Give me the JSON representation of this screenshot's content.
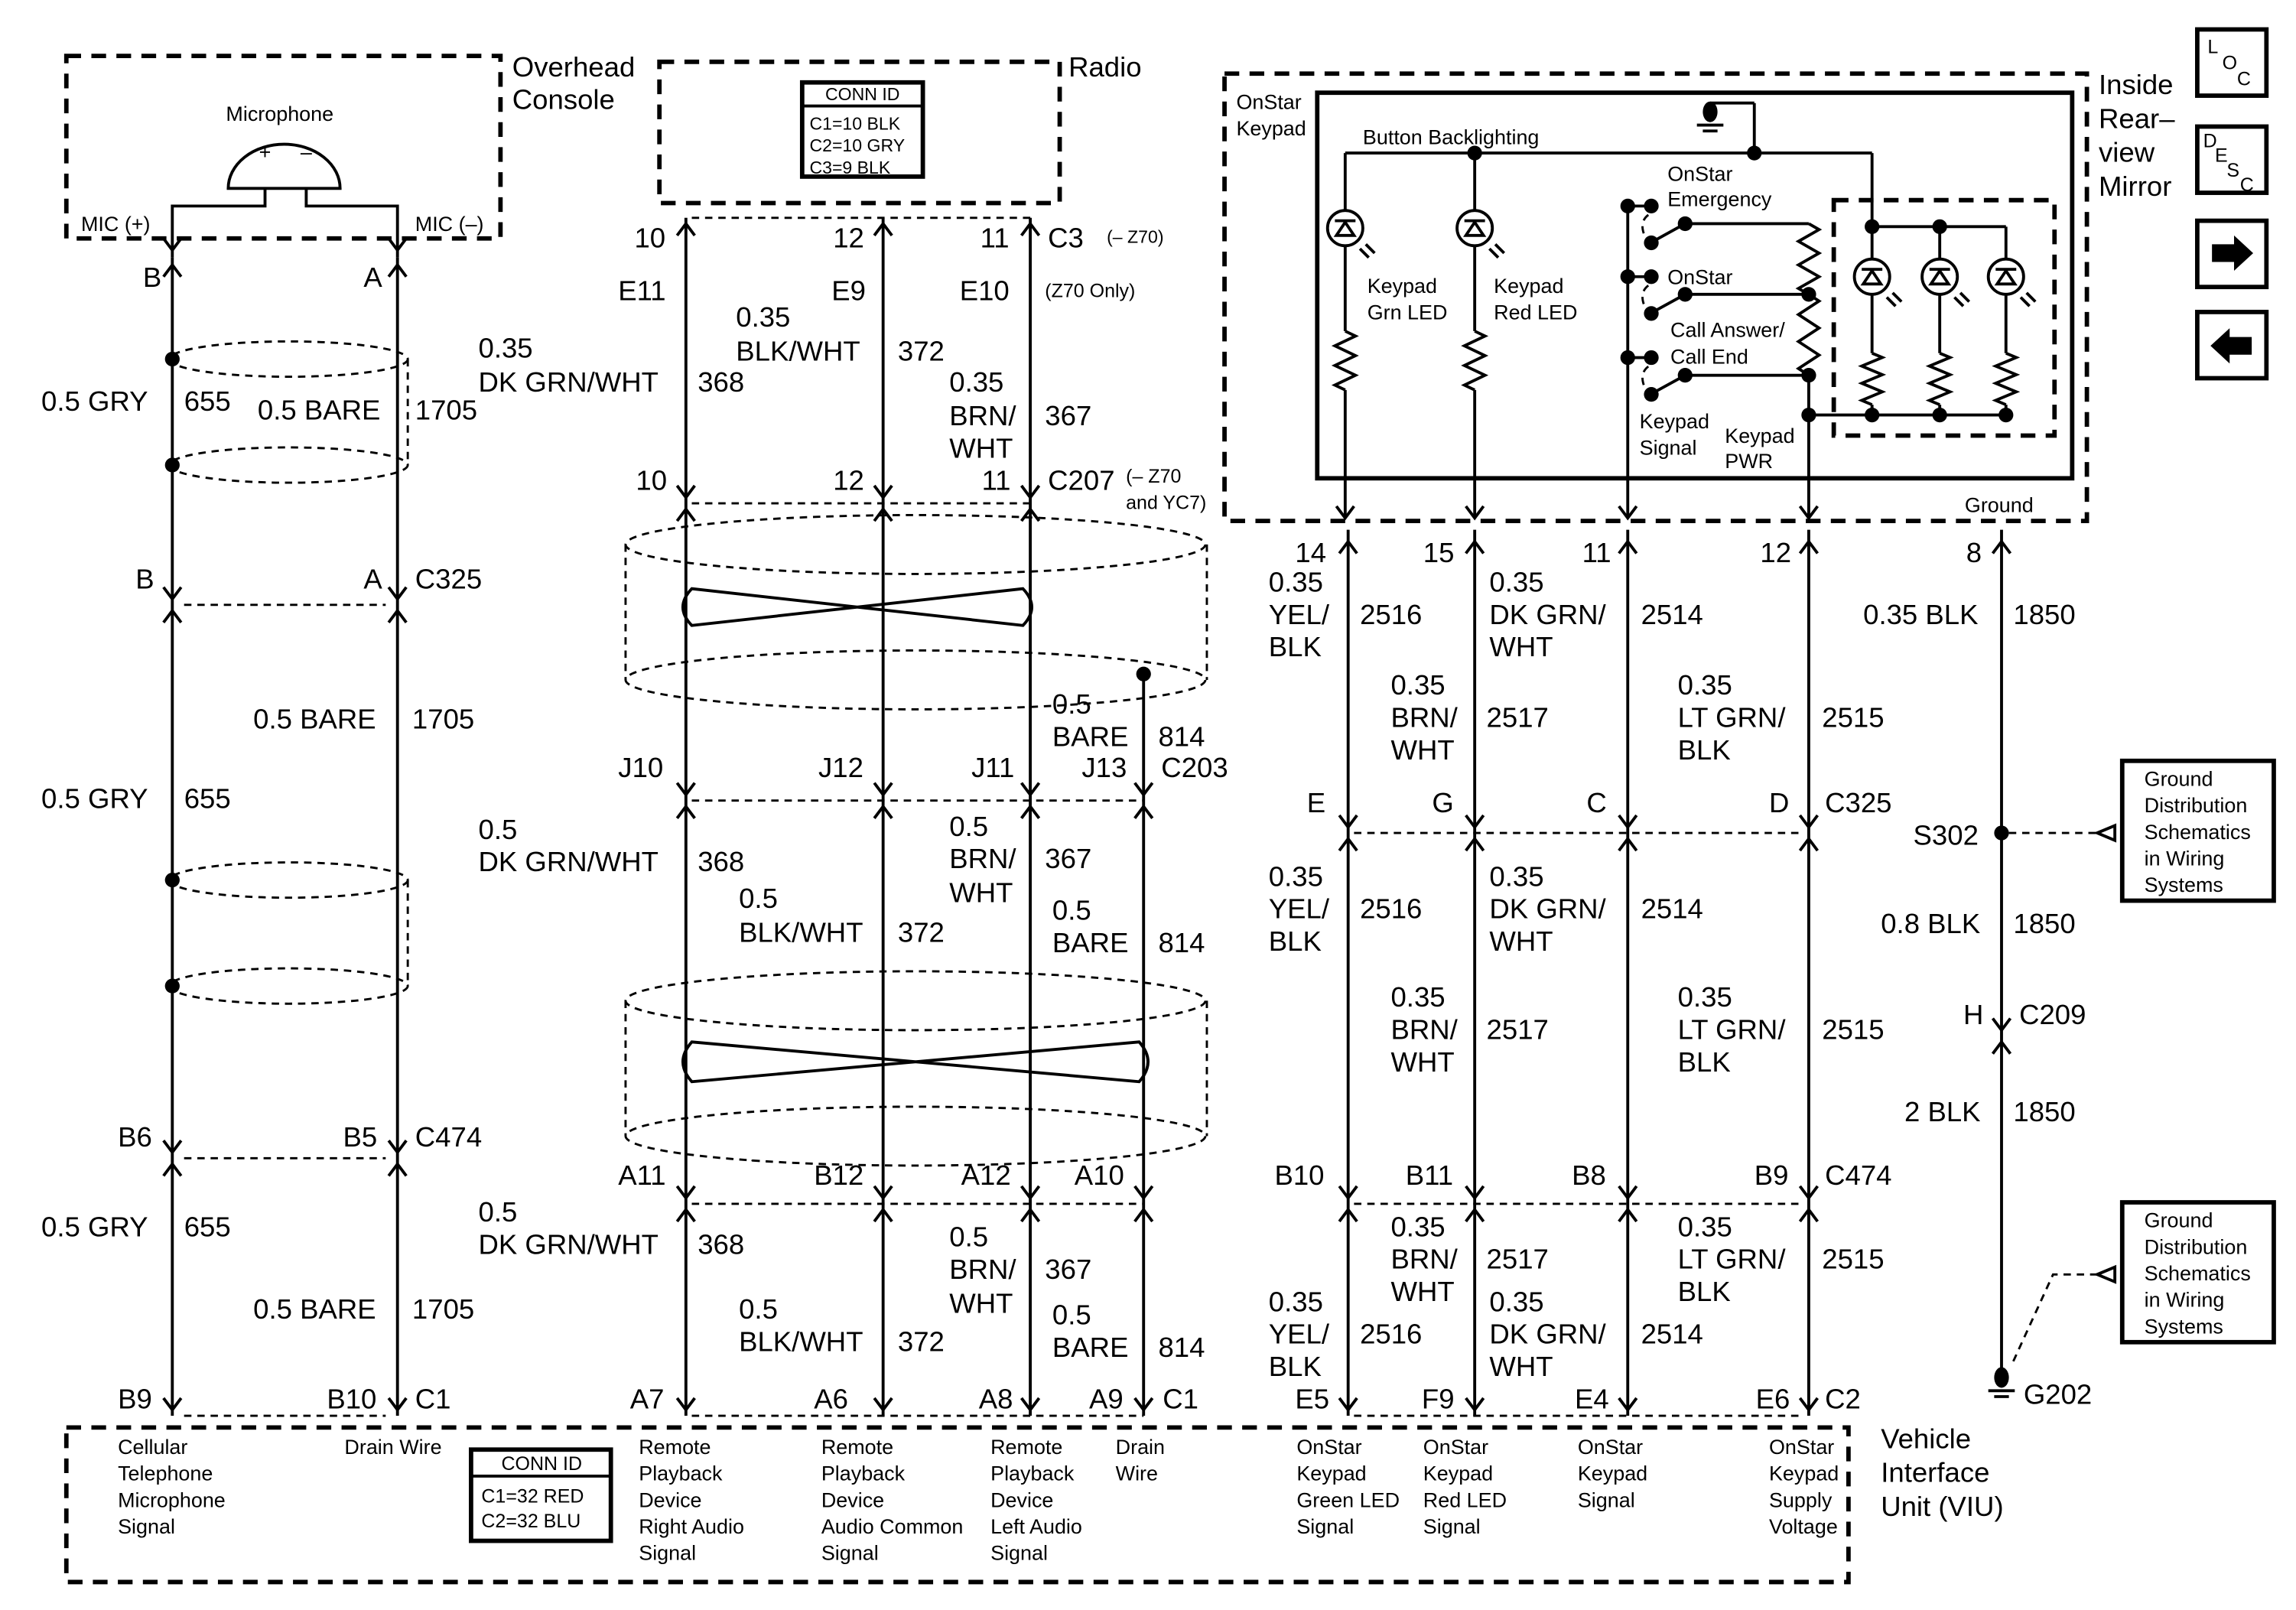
{
  "colors": {
    "ink": "#000000",
    "background": "#ffffff"
  },
  "nav": {
    "loc": [
      "L",
      "O",
      "C"
    ],
    "desc": [
      "D",
      "E",
      "S",
      "C"
    ],
    "next_icon": "arrow-right-icon",
    "prev_icon": "arrow-left-icon"
  },
  "components": {
    "overhead_console": [
      "Overhead",
      "Console"
    ],
    "microphone": "Microphone",
    "mic_pos_sign": "+",
    "mic_neg_sign": "–",
    "mic_plus": "MIC (+)",
    "mic_minus": "MIC (–)",
    "radio": "Radio",
    "radio_conn_id": {
      "title": "CONN ID",
      "lines": [
        "C1=10 BLK",
        "C2=10 GRY",
        "C3=9 BLK"
      ]
    },
    "mirror": [
      "Inside",
      "Rear–",
      "view",
      "Mirror"
    ],
    "keypad": [
      "OnStar",
      "Keypad"
    ],
    "backlighting": "Button Backlighting",
    "grn_led": [
      "Keypad",
      "Grn LED"
    ],
    "red_led": [
      "Keypad",
      "Red LED"
    ],
    "switches": [
      "OnStar",
      "Emergency",
      "OnStar",
      "Call Answer/",
      "Call End"
    ],
    "keypad_signal": [
      "Keypad",
      "Signal"
    ],
    "keypad_pwr": [
      "Keypad",
      "PWR"
    ],
    "ground": "Ground",
    "viu": [
      "Vehicle",
      "Interface",
      "Unit (VIU)"
    ],
    "viu_conn_id": {
      "title": "CONN ID",
      "lines": [
        "C1=32 RED",
        "C2=32 BLU"
      ]
    },
    "ground_ref": [
      "Ground",
      "Distribution",
      "Schematics",
      "in Wiring",
      "Systems"
    ],
    "s302": "S302",
    "g202": "G202"
  },
  "connectors": {
    "mic_top": [
      "B",
      "A"
    ],
    "c325_left": [
      "B",
      "A",
      "C325"
    ],
    "c474_left": [
      "B6",
      "B5",
      "C474"
    ],
    "c1_left": [
      "B9",
      "B10",
      "C1"
    ],
    "c3": [
      "10",
      "12",
      "11",
      "C3",
      "(– Z70)"
    ],
    "e_row": [
      "E11",
      "E9",
      "E10",
      "(Z70 Only)"
    ],
    "c207": [
      "10",
      "12",
      "11",
      "C207",
      "(– Z70",
      "and YC7)"
    ],
    "c203": [
      "J10",
      "J12",
      "J11",
      "J13",
      "C203"
    ],
    "a_row": [
      "A11",
      "B12",
      "A12",
      "A10"
    ],
    "c1_mid": [
      "A7",
      "A6",
      "A8",
      "A9",
      "C1"
    ],
    "mirror_pins": [
      "14",
      "15",
      "11",
      "12",
      "8"
    ],
    "c325_right": [
      "E",
      "G",
      "C",
      "D",
      "C325"
    ],
    "c209": [
      "H",
      "C209"
    ],
    "c474_right": [
      "B10",
      "B11",
      "B8",
      "B9",
      "C474"
    ],
    "c2": [
      "E5",
      "F9",
      "E4",
      "E6",
      "C2"
    ]
  },
  "wires": [
    "0.5 GRY",
    "655",
    "0.5 BARE",
    "1705",
    "0.5 BARE",
    "1705",
    "0.5 GRY",
    "655",
    "0.5 GRY",
    "655",
    "0.5 BARE",
    "1705",
    "0.35",
    "BLK/WHT",
    "372",
    "0.35",
    "DK GRN/WHT",
    "368",
    "0.35",
    "BRN/",
    "WHT",
    "367",
    "0.5",
    "BARE",
    "814",
    "0.5",
    "DK GRN/WHT",
    "368",
    "0.5",
    "BRN/",
    "WHT",
    "367",
    "0.5",
    "BLK/WHT",
    "372",
    "0.5",
    "BARE",
    "814",
    "0.5",
    "DK GRN/WHT",
    "368",
    "0.5",
    "BRN/",
    "WHT",
    "367",
    "0.5",
    "BLK/WHT",
    "372",
    "0.5",
    "BARE",
    "814",
    "0.35",
    "YEL/",
    "BLK",
    "2516",
    "0.35",
    "DK GRN/",
    "WHT",
    "2514",
    "0.35",
    "BRN/",
    "WHT",
    "2517",
    "0.35",
    "LT GRN/",
    "BLK",
    "2515",
    "0.35 BLK",
    "1850",
    "0.35",
    "YEL/",
    "BLK",
    "2516",
    "0.35",
    "DK GRN/",
    "WHT",
    "2514",
    "0.35",
    "BRN/",
    "WHT",
    "2517",
    "0.35",
    "LT GRN/",
    "BLK",
    "2515",
    "0.8 BLK",
    "1850",
    "2 BLK",
    "1850",
    "0.35",
    "BRN/",
    "WHT",
    "2517",
    "0.35",
    "LT GRN/",
    "BLK",
    "2515",
    "0.35",
    "YEL/",
    "BLK",
    "2516",
    "0.35",
    "DK GRN/",
    "WHT",
    "2514"
  ],
  "viu_functions": [
    [
      "Cellular",
      "Telephone",
      "Microphone",
      "Signal"
    ],
    [
      "Drain Wire"
    ],
    [
      "Remote",
      "Playback",
      "Device",
      "Right Audio",
      "Signal"
    ],
    [
      "Remote",
      "Playback",
      "Device",
      "Audio Common",
      "Signal"
    ],
    [
      "Remote",
      "Playback",
      "Device",
      "Left Audio",
      "Signal"
    ],
    [
      "Drain",
      "Wire"
    ],
    [
      "OnStar",
      "Keypad",
      "Green LED",
      "Signal"
    ],
    [
      "OnStar",
      "Keypad",
      "Red LED",
      "Signal"
    ],
    [
      "OnStar",
      "Keypad",
      "Signal"
    ],
    [
      "OnStar",
      "Keypad",
      "Supply",
      "Voltage"
    ]
  ]
}
